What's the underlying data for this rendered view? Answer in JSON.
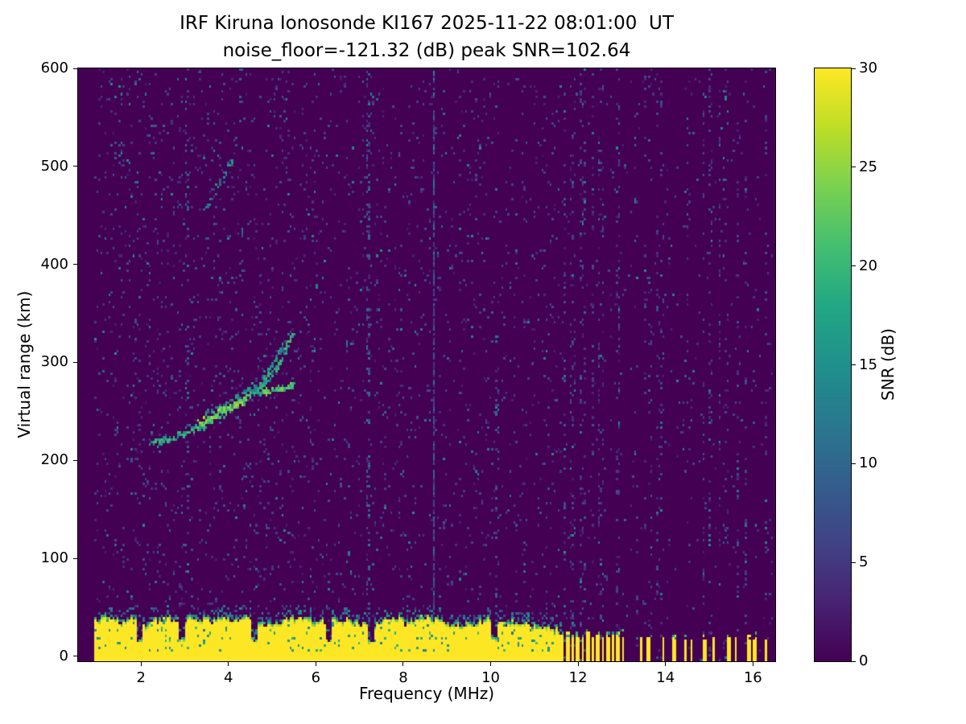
{
  "figure": {
    "title_line1": "IRF Kiruna Ionosonde KI167 2025-11-22 08:01:00  UT",
    "title_line2": "noise_floor=-121.32 (dB) peak SNR=102.64",
    "xlabel": "Frequency (MHz)",
    "ylabel": "Virtual range (km)",
    "colorbar_label": "SNR (dB)"
  },
  "chart_data": {
    "type": "heatmap",
    "title": "IRF Kiruna Ionosonde KI167 2025-11-22 08:01:00  UT",
    "subtitle": "noise_floor=-121.32 (dB) peak SNR=102.64",
    "station": "IRF Kiruna Ionosonde KI167",
    "timestamp_ut": "2025-11-22 08:01:00",
    "noise_floor_db": -121.32,
    "peak_snr_db": 102.64,
    "xlabel": "Frequency (MHz)",
    "ylabel": "Virtual range (km)",
    "xlim": [
      0.56,
      16.51
    ],
    "ylim": [
      -5,
      600
    ],
    "xticks": [
      2,
      4,
      6,
      8,
      10,
      12,
      14,
      16
    ],
    "yticks": [
      0,
      100,
      200,
      300,
      400,
      500,
      600
    ],
    "colormap": "viridis",
    "background_color": "#440154",
    "peak_color": "#fde725",
    "colorbar": {
      "label": "SNR (dB)",
      "min": 0,
      "max": 30,
      "ticks": [
        0,
        5,
        10,
        15,
        20,
        25,
        30
      ]
    },
    "features": {
      "background_db": 0,
      "data_freq_min": 0.95,
      "data_freq_max": 16.45,
      "clutter_freq_max": 11.62,
      "clutter_mean_height_km": 30,
      "dash_dense_freq_max": 13.05,
      "clutter_dips": [
        1.95,
        2.95,
        4.6,
        6.3,
        7.25,
        10.1
      ],
      "dash_freqs": [
        13.45,
        13.6,
        13.95,
        14.2,
        14.45,
        14.6,
        14.9,
        15.1,
        15.45,
        15.6,
        15.9,
        16.05,
        16.3
      ],
      "vertical_lines": [
        {
          "f": 3.05,
          "w": 0.03,
          "p": 0.16,
          "r0": 40,
          "r1": 600
        },
        {
          "f": 6.3,
          "w": 0.03,
          "p": 0.14,
          "r0": 0,
          "r1": 170
        },
        {
          "f": 7.2,
          "w": 0.035,
          "p": 0.3,
          "r0": 0,
          "r1": 600
        },
        {
          "f": 8.7,
          "w": 0.03,
          "p": 0.8,
          "r0": 0,
          "r1": 600
        },
        {
          "f": 10.15,
          "w": 0.03,
          "p": 0.18,
          "r0": 0,
          "r1": 330
        },
        {
          "f": 4.3,
          "w": 0.03,
          "p": 0.1,
          "r0": 330,
          "r1": 600
        }
      ],
      "traces": [
        {
          "name": "echo-arc-main",
          "points": [
            [
              2.2,
              216
            ],
            [
              2.6,
              221
            ],
            [
              3.0,
              228
            ],
            [
              3.4,
              236
            ],
            [
              3.8,
              247
            ],
            [
              4.2,
              258
            ],
            [
              4.6,
              270
            ],
            [
              4.9,
              283
            ],
            [
              5.15,
              298
            ],
            [
              5.35,
              315
            ],
            [
              5.5,
              332
            ]
          ],
          "intensity": 17,
          "density": 0.85,
          "spread": 5
        },
        {
          "name": "echo-arc-branch",
          "points": [
            [
              3.5,
              247
            ],
            [
              3.9,
              256
            ],
            [
              4.3,
              267
            ],
            [
              4.7,
              281
            ],
            [
              5.0,
              296
            ],
            [
              5.2,
              312
            ],
            [
              5.4,
              330
            ]
          ],
          "intensity": 13,
          "density": 0.45,
          "spread": 4
        },
        {
          "name": "echo-cluster",
          "points": [
            [
              3.3,
              238
            ],
            [
              3.7,
              246
            ],
            [
              4.1,
              254
            ],
            [
              4.4,
              261
            ]
          ],
          "intensity": 22,
          "density": 0.95,
          "spread": 6
        },
        {
          "name": "echo-flat",
          "points": [
            [
              4.7,
              268
            ],
            [
              5.1,
              272
            ],
            [
              5.5,
              277
            ]
          ],
          "intensity": 20,
          "density": 0.8,
          "spread": 4
        },
        {
          "name": "second-hop-echo",
          "points": [
            [
              3.45,
              455
            ],
            [
              3.65,
              470
            ],
            [
              3.85,
              488
            ],
            [
              4.0,
              500
            ],
            [
              4.15,
              512
            ]
          ],
          "intensity": 12,
          "density": 0.5,
          "spread": 5
        }
      ]
    }
  }
}
